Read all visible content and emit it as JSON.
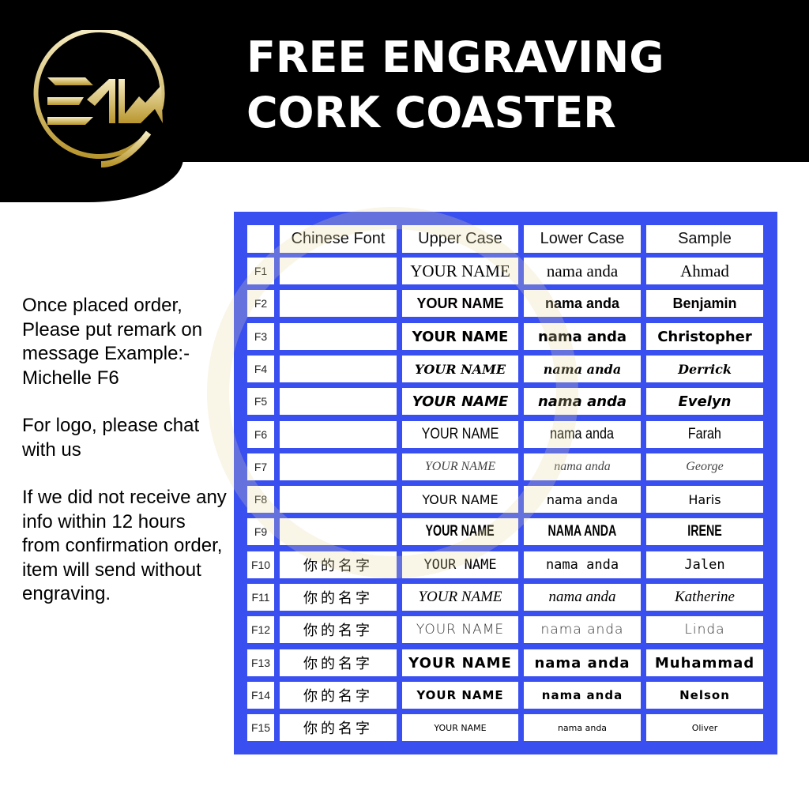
{
  "brand": {
    "logo_text": "EMW",
    "gold": "#d8c27a"
  },
  "title": {
    "line1": "FREE ENGRAVING",
    "line2": "CORK COASTER"
  },
  "info": [
    "Once placed order, Please put remark on message Example:- Michelle F6",
    "For logo, please chat with us",
    "If we did not receive any info within 12 hours from confirmation order, item will send without engraving."
  ],
  "table": {
    "accent": "#3a4ff0",
    "headers": [
      "",
      "Chinese Font",
      "Upper Case",
      "Lower Case",
      "Sample"
    ],
    "rows": [
      {
        "id": "F1",
        "chinese": "",
        "upper": "YOUR NAME",
        "lower": "nama anda",
        "sample": "Ahmad"
      },
      {
        "id": "F2",
        "chinese": "",
        "upper": "YOUR NAME",
        "lower": "nama anda",
        "sample": "Benjamin"
      },
      {
        "id": "F3",
        "chinese": "",
        "upper": "YOUR NAME",
        "lower": "nama anda",
        "sample": "Christopher"
      },
      {
        "id": "F4",
        "chinese": "",
        "upper": "YOUR NAME",
        "lower": "nama anda",
        "sample": "Derrick"
      },
      {
        "id": "F5",
        "chinese": "",
        "upper": "YOUR NAME",
        "lower": "nama anda",
        "sample": "Evelyn"
      },
      {
        "id": "F6",
        "chinese": "",
        "upper": "YOUR NAME",
        "lower": "nama anda",
        "sample": "Farah"
      },
      {
        "id": "F7",
        "chinese": "",
        "upper": "YOUR NAME",
        "lower": "nama anda",
        "sample": "George"
      },
      {
        "id": "F8",
        "chinese": "",
        "upper": "YOUR NAME",
        "lower": "nama anda",
        "sample": "Haris"
      },
      {
        "id": "F9",
        "chinese": "",
        "upper": "YOUR NAME",
        "lower": "NAMA ANDA",
        "sample": "IRENE"
      },
      {
        "id": "F10",
        "chinese": "你的名字",
        "upper": "YOUR NAME",
        "lower": "nama anda",
        "sample": "Jalen"
      },
      {
        "id": "F11",
        "chinese": "你的名字",
        "upper": "YOUR NAME",
        "lower": "nama anda",
        "sample": "Katherine"
      },
      {
        "id": "F12",
        "chinese": "你的名字",
        "upper": "YOUR NAME",
        "lower": "nama anda",
        "sample": "Linda"
      },
      {
        "id": "F13",
        "chinese": "你的名字",
        "upper": "YOUR NAME",
        "lower": "nama anda",
        "sample": "Muhammad"
      },
      {
        "id": "F14",
        "chinese": "你的名字",
        "upper": "YOUR NAME",
        "lower": "nama anda",
        "sample": "Nelson"
      },
      {
        "id": "F15",
        "chinese": "你的名字",
        "upper": "YOUR NAME",
        "lower": "nama anda",
        "sample": "Oliver"
      }
    ]
  }
}
